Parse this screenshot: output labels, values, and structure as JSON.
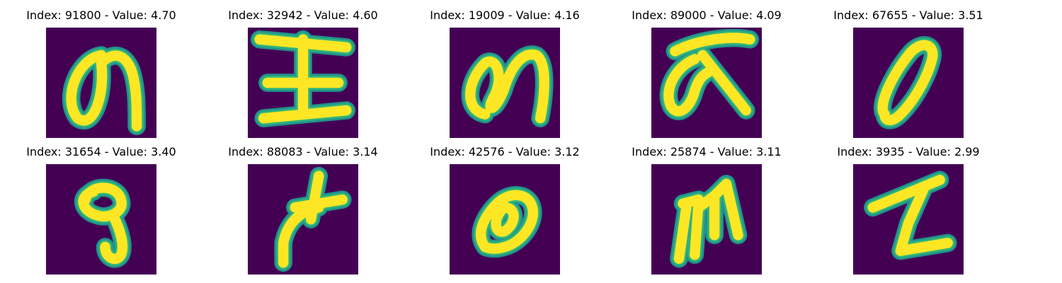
{
  "colors": {
    "background": "#440154",
    "mid": "#21918c",
    "edge": "#2fb47c",
    "bright": "#fde725"
  },
  "panels": [
    {
      "title": "Index: 91800 - Value: 4.70",
      "glyph": "glyph-91800"
    },
    {
      "title": "Index: 32942 - Value: 4.60",
      "glyph": "glyph-32942"
    },
    {
      "title": "Index: 19009 - Value: 4.16",
      "glyph": "glyph-19009"
    },
    {
      "title": "Index: 89000 - Value: 4.09",
      "glyph": "glyph-89000"
    },
    {
      "title": "Index: 67655 - Value: 3.51",
      "glyph": "glyph-67655"
    },
    {
      "title": "Index: 31654 - Value: 3.40",
      "glyph": "glyph-31654"
    },
    {
      "title": "Index: 88083 - Value: 3.14",
      "glyph": "glyph-88083"
    },
    {
      "title": "Index: 42576 - Value: 3.12",
      "glyph": "glyph-42576"
    },
    {
      "title": "Index: 25874 - Value: 3.11",
      "glyph": "glyph-25874"
    },
    {
      "title": "Index: 3935 - Value: 2.99",
      "glyph": "glyph-3935"
    }
  ]
}
